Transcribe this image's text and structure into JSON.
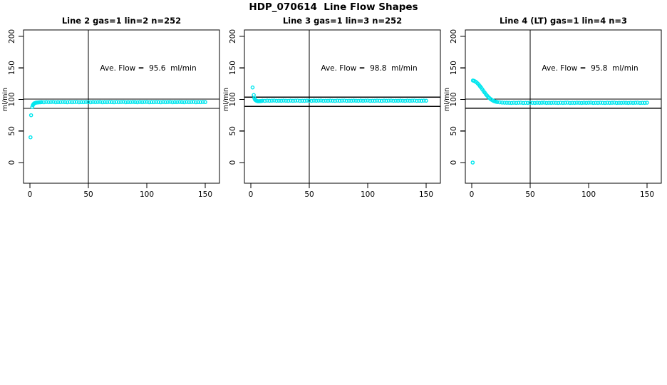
{
  "figure": {
    "title": "HDP_070614  Line Flow Shapes"
  },
  "colors": {
    "points": "#00E6EE",
    "axis": "#000000",
    "background": "#ffffff"
  },
  "chart_data": [
    {
      "type": "scatter",
      "title": "Line 2 gas=1 lin=2 n=252",
      "annotation": "Ave. Flow =  95.6  ml/min",
      "ave_flow_ml_min": 95.6,
      "xlabel": "",
      "ylabel": "ml/min",
      "xlim": [
        0,
        150
      ],
      "ylim": [
        0,
        200
      ],
      "xticks": [
        0,
        50,
        100,
        150
      ],
      "yticks": [
        0,
        50,
        100,
        150,
        200
      ],
      "ref_line_x": 50,
      "ref_lines_y": [
        100.4,
        86.0
      ],
      "points": [
        [
          0.5,
          40
        ],
        [
          1,
          75
        ],
        [
          2,
          88
        ],
        [
          2.5,
          91
        ],
        [
          3,
          92.5
        ],
        [
          3.5,
          93.5
        ],
        [
          4,
          94.2
        ],
        [
          5,
          94.8
        ],
        [
          6,
          95.1
        ],
        [
          7,
          95.3
        ],
        [
          8,
          95.5
        ],
        [
          9,
          95.6
        ],
        [
          10,
          95.8
        ],
        [
          12,
          95.6
        ],
        [
          14,
          96.0
        ],
        [
          16,
          95.7
        ],
        [
          18,
          95.9
        ],
        [
          20,
          96.1
        ],
        [
          22,
          95.6
        ],
        [
          24,
          95.8
        ],
        [
          26,
          95.7
        ],
        [
          28,
          96.0
        ],
        [
          30,
          95.8
        ],
        [
          32,
          95.6
        ],
        [
          34,
          96.0
        ],
        [
          36,
          95.7
        ],
        [
          38,
          95.9
        ],
        [
          40,
          96.1
        ],
        [
          42,
          95.6
        ],
        [
          44,
          95.8
        ],
        [
          46,
          95.7
        ],
        [
          48,
          96.0
        ],
        [
          50,
          95.8
        ],
        [
          52,
          95.6
        ],
        [
          54,
          96.0
        ],
        [
          56,
          95.7
        ],
        [
          58,
          95.9
        ],
        [
          60,
          96.1
        ],
        [
          62,
          95.6
        ],
        [
          64,
          95.8
        ],
        [
          66,
          95.7
        ],
        [
          68,
          96.0
        ],
        [
          70,
          95.8
        ],
        [
          72,
          95.6
        ],
        [
          74,
          96.0
        ],
        [
          76,
          95.7
        ],
        [
          78,
          95.9
        ],
        [
          80,
          96.1
        ],
        [
          82,
          95.6
        ],
        [
          84,
          95.8
        ],
        [
          86,
          95.7
        ],
        [
          88,
          96.0
        ],
        [
          90,
          95.8
        ],
        [
          92,
          95.6
        ],
        [
          94,
          96.0
        ],
        [
          96,
          95.7
        ],
        [
          98,
          95.9
        ],
        [
          100,
          96.1
        ],
        [
          102,
          95.6
        ],
        [
          104,
          95.8
        ],
        [
          106,
          95.7
        ],
        [
          108,
          96.0
        ],
        [
          110,
          95.8
        ],
        [
          112,
          95.6
        ],
        [
          114,
          96.0
        ],
        [
          116,
          95.7
        ],
        [
          118,
          95.9
        ],
        [
          120,
          96.1
        ],
        [
          122,
          95.6
        ],
        [
          124,
          95.8
        ],
        [
          126,
          95.7
        ],
        [
          128,
          96.0
        ],
        [
          130,
          95.8
        ],
        [
          132,
          95.6
        ],
        [
          134,
          96.0
        ],
        [
          136,
          95.7
        ],
        [
          138,
          95.9
        ],
        [
          140,
          96.1
        ],
        [
          142,
          95.6
        ],
        [
          144,
          95.8
        ],
        [
          146,
          95.7
        ],
        [
          148,
          96.0
        ],
        [
          150,
          95.8
        ]
      ]
    },
    {
      "type": "scatter",
      "title": "Line 3 gas=1 lin=3 n=252",
      "annotation": "Ave. Flow =  98.8  ml/min",
      "ave_flow_ml_min": 98.8,
      "xlabel": "",
      "ylabel": "ml/min",
      "xlim": [
        0,
        150
      ],
      "ylim": [
        0,
        200
      ],
      "xticks": [
        0,
        50,
        100,
        150
      ],
      "yticks": [
        0,
        50,
        100,
        150,
        200
      ],
      "ref_line_x": 50,
      "ref_lines_y": [
        103.7,
        88.9
      ],
      "points": [
        [
          1.5,
          119
        ],
        [
          2.5,
          107
        ],
        [
          3,
          102
        ],
        [
          3.5,
          100
        ],
        [
          4,
          99
        ],
        [
          4.5,
          98.3
        ],
        [
          5,
          97.8
        ],
        [
          6,
          97.3
        ],
        [
          7,
          97.2
        ],
        [
          8,
          97.4
        ],
        [
          9,
          97.6
        ],
        [
          10,
          98.0
        ],
        [
          12,
          97.8
        ],
        [
          14,
          98.2
        ],
        [
          16,
          97.9
        ],
        [
          18,
          98.1
        ],
        [
          20,
          98.3
        ],
        [
          22,
          97.8
        ],
        [
          24,
          98.0
        ],
        [
          26,
          97.9
        ],
        [
          28,
          98.2
        ],
        [
          30,
          98.0
        ],
        [
          32,
          97.8
        ],
        [
          34,
          98.2
        ],
        [
          36,
          97.9
        ],
        [
          38,
          98.1
        ],
        [
          40,
          98.3
        ],
        [
          42,
          97.8
        ],
        [
          44,
          98.0
        ],
        [
          46,
          97.9
        ],
        [
          48,
          98.2
        ],
        [
          50,
          98.0
        ],
        [
          52,
          97.8
        ],
        [
          54,
          98.2
        ],
        [
          56,
          97.9
        ],
        [
          58,
          98.1
        ],
        [
          60,
          98.3
        ],
        [
          62,
          97.8
        ],
        [
          64,
          98.0
        ],
        [
          66,
          97.9
        ],
        [
          68,
          98.2
        ],
        [
          70,
          98.0
        ],
        [
          72,
          97.8
        ],
        [
          74,
          98.2
        ],
        [
          76,
          97.9
        ],
        [
          78,
          98.1
        ],
        [
          80,
          98.3
        ],
        [
          82,
          97.8
        ],
        [
          84,
          98.0
        ],
        [
          86,
          97.9
        ],
        [
          88,
          98.2
        ],
        [
          90,
          98.0
        ],
        [
          92,
          97.8
        ],
        [
          94,
          98.2
        ],
        [
          96,
          97.9
        ],
        [
          98,
          98.1
        ],
        [
          100,
          98.3
        ],
        [
          102,
          97.8
        ],
        [
          104,
          98.0
        ],
        [
          106,
          97.9
        ],
        [
          108,
          98.2
        ],
        [
          110,
          98.0
        ],
        [
          112,
          97.8
        ],
        [
          114,
          98.2
        ],
        [
          116,
          97.9
        ],
        [
          118,
          98.1
        ],
        [
          120,
          98.3
        ],
        [
          122,
          97.8
        ],
        [
          124,
          98.0
        ],
        [
          126,
          97.9
        ],
        [
          128,
          98.2
        ],
        [
          130,
          98.0
        ],
        [
          132,
          97.8
        ],
        [
          134,
          98.2
        ],
        [
          136,
          97.9
        ],
        [
          138,
          98.1
        ],
        [
          140,
          98.3
        ],
        [
          142,
          97.8
        ],
        [
          144,
          98.0
        ],
        [
          146,
          97.9
        ],
        [
          148,
          98.2
        ],
        [
          150,
          98.0
        ]
      ]
    },
    {
      "type": "scatter",
      "title": "Line 4 (LT) gas=1 lin=4 n=3",
      "annotation": "Ave. Flow =  95.8  ml/min",
      "ave_flow_ml_min": 95.8,
      "xlabel": "",
      "ylabel": "ml/min",
      "xlim": [
        0,
        150
      ],
      "ylim": [
        0,
        200
      ],
      "xticks": [
        0,
        50,
        100,
        150
      ],
      "yticks": [
        0,
        50,
        100,
        150,
        200
      ],
      "ref_line_x": 50,
      "ref_lines_y": [
        100.6,
        86.2
      ],
      "points": [
        [
          0.8,
          0
        ],
        [
          1,
          130
        ],
        [
          2,
          129.5
        ],
        [
          3,
          128.5
        ],
        [
          4,
          127.2
        ],
        [
          5,
          125.5
        ],
        [
          6,
          123.5
        ],
        [
          7,
          121.2
        ],
        [
          8,
          118.8
        ],
        [
          9,
          116.2
        ],
        [
          10,
          113.5
        ],
        [
          11,
          111
        ],
        [
          12,
          108.5
        ],
        [
          13,
          106.3
        ],
        [
          14,
          104.2
        ],
        [
          15,
          102.4
        ],
        [
          16,
          100.8
        ],
        [
          17,
          99.5
        ],
        [
          18,
          98.4
        ],
        [
          19,
          97.5
        ],
        [
          20,
          96.8
        ],
        [
          21,
          96.3
        ],
        [
          22,
          95.9
        ],
        [
          24,
          95.4
        ],
        [
          26,
          95.1
        ],
        [
          28,
          94.9
        ],
        [
          30,
          94.8
        ],
        [
          32,
          94.7
        ],
        [
          34,
          94.5
        ],
        [
          36,
          94.9
        ],
        [
          38,
          94.6
        ],
        [
          40,
          94.8
        ],
        [
          42,
          95.0
        ],
        [
          44,
          94.5
        ],
        [
          46,
          94.7
        ],
        [
          48,
          94.6
        ],
        [
          50,
          94.9
        ],
        [
          52,
          94.7
        ],
        [
          54,
          94.5
        ],
        [
          56,
          94.9
        ],
        [
          58,
          94.6
        ],
        [
          60,
          94.8
        ],
        [
          62,
          95.0
        ],
        [
          64,
          94.5
        ],
        [
          66,
          94.7
        ],
        [
          68,
          94.6
        ],
        [
          70,
          94.9
        ],
        [
          72,
          94.7
        ],
        [
          74,
          94.5
        ],
        [
          76,
          94.9
        ],
        [
          78,
          94.6
        ],
        [
          80,
          94.8
        ],
        [
          82,
          95.0
        ],
        [
          84,
          94.5
        ],
        [
          86,
          94.7
        ],
        [
          88,
          94.6
        ],
        [
          90,
          94.9
        ],
        [
          92,
          94.7
        ],
        [
          94,
          94.5
        ],
        [
          96,
          94.9
        ],
        [
          98,
          94.6
        ],
        [
          100,
          94.8
        ],
        [
          102,
          95.0
        ],
        [
          104,
          94.5
        ],
        [
          106,
          94.7
        ],
        [
          108,
          94.6
        ],
        [
          110,
          94.9
        ],
        [
          112,
          94.7
        ],
        [
          114,
          94.5
        ],
        [
          116,
          94.9
        ],
        [
          118,
          94.6
        ],
        [
          120,
          94.8
        ],
        [
          122,
          95.0
        ],
        [
          124,
          94.5
        ],
        [
          126,
          94.7
        ],
        [
          128,
          94.6
        ],
        [
          130,
          94.9
        ],
        [
          132,
          94.7
        ],
        [
          134,
          94.5
        ],
        [
          136,
          94.9
        ],
        [
          138,
          94.6
        ],
        [
          140,
          94.8
        ],
        [
          142,
          95.0
        ],
        [
          144,
          94.5
        ],
        [
          146,
          94.7
        ],
        [
          148,
          94.6
        ],
        [
          150,
          94.9
        ]
      ]
    }
  ]
}
